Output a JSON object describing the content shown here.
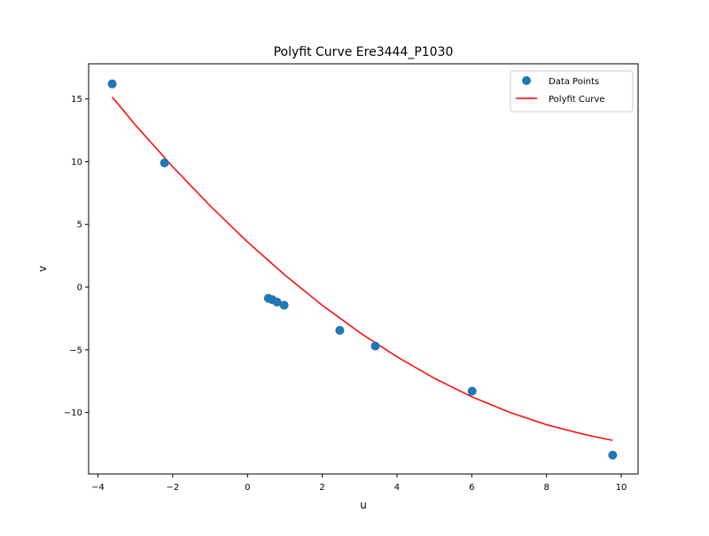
{
  "chart_data": {
    "type": "scatter",
    "title": "Polyfit Curve Ere3444_P1030",
    "xlabel": "u",
    "ylabel": "v",
    "xlim": [
      -4.25,
      10.45
    ],
    "ylim": [
      -14.9,
      17.8
    ],
    "xticks": [
      -4,
      -2,
      0,
      2,
      4,
      6,
      8,
      10
    ],
    "yticks": [
      -10,
      -5,
      0,
      5,
      10,
      15
    ],
    "xtick_labels": [
      "−4",
      "−2",
      "0",
      "2",
      "4",
      "6",
      "8",
      "10"
    ],
    "ytick_labels": [
      "−10",
      "−5",
      "0",
      "5",
      "10",
      "15"
    ],
    "grid": false,
    "legend_position": "upper right",
    "colors": {
      "points": "#1f77b4",
      "curve": "#ff0000"
    },
    "series": [
      {
        "name": "Data Points",
        "kind": "scatter",
        "x": [
          -3.62,
          -2.22,
          0.56,
          0.66,
          0.79,
          0.98,
          2.47,
          3.42,
          6.01,
          9.77
        ],
        "y": [
          16.2,
          9.9,
          -0.9,
          -1.0,
          -1.2,
          -1.45,
          -3.45,
          -4.7,
          -8.3,
          -13.4
        ]
      },
      {
        "name": "Polyfit Curve",
        "kind": "line",
        "x": [
          -3.62,
          -3.0,
          -2.0,
          -1.0,
          0.0,
          1.0,
          2.0,
          3.0,
          4.0,
          5.0,
          6.0,
          7.0,
          8.0,
          9.0,
          9.77
        ],
        "y": [
          15.15,
          12.93,
          9.59,
          6.48,
          3.6,
          0.96,
          -1.45,
          -3.62,
          -5.56,
          -7.27,
          -8.74,
          -9.97,
          -10.97,
          -11.74,
          -12.22
        ]
      }
    ]
  }
}
